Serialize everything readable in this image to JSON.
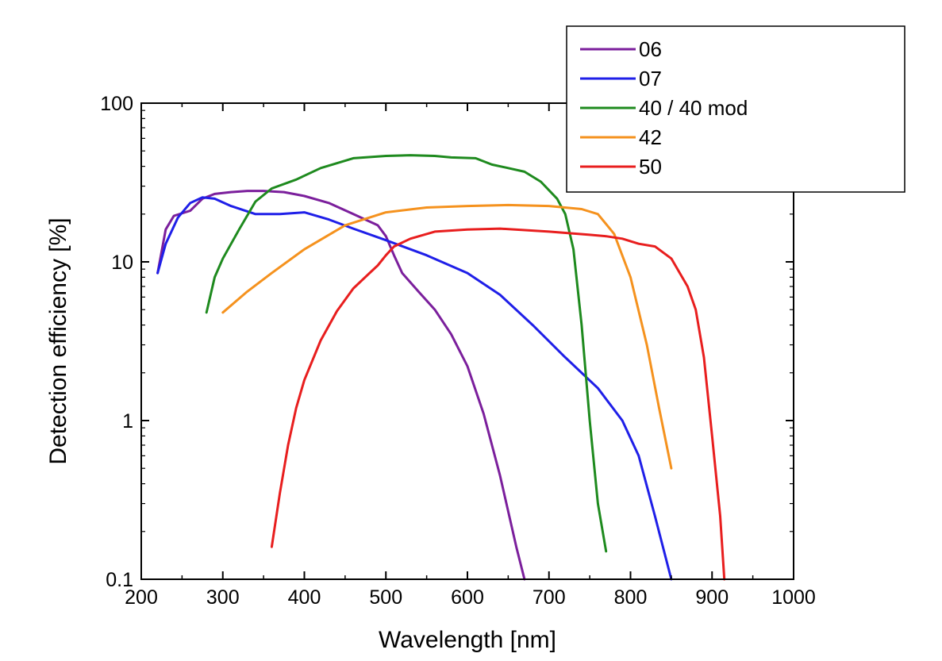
{
  "chart_data": {
    "type": "line",
    "title": "",
    "xlabel": "Wavelength [nm]",
    "ylabel": "Detection efficiency [%]",
    "xlim": [
      200,
      1000
    ],
    "ylim": [
      0.1,
      100
    ],
    "yscale": "log",
    "xticks": [
      200,
      300,
      400,
      500,
      600,
      700,
      800,
      900,
      1000
    ],
    "yticks": [
      0.1,
      1,
      10,
      100
    ],
    "x_tick_labels": [
      "200",
      "300",
      "400",
      "500",
      "600",
      "700",
      "800",
      "900",
      "1000"
    ],
    "y_tick_labels": [
      "0.1",
      "1",
      "10",
      "100"
    ],
    "grid": false,
    "legend_position": "top-right",
    "series": [
      {
        "name": "06",
        "color": "#7b1f9c",
        "points": [
          [
            220,
            8.5
          ],
          [
            230,
            16
          ],
          [
            240,
            19.5
          ],
          [
            260,
            21
          ],
          [
            275,
            25
          ],
          [
            290,
            26.8
          ],
          [
            310,
            27.5
          ],
          [
            330,
            28
          ],
          [
            350,
            28
          ],
          [
            375,
            27.5
          ],
          [
            400,
            26
          ],
          [
            430,
            23.5
          ],
          [
            460,
            20
          ],
          [
            490,
            17
          ],
          [
            500,
            14.5
          ],
          [
            510,
            11
          ],
          [
            520,
            8.5
          ],
          [
            540,
            6.5
          ],
          [
            560,
            5
          ],
          [
            580,
            3.5
          ],
          [
            600,
            2.2
          ],
          [
            620,
            1.1
          ],
          [
            640,
            0.45
          ],
          [
            660,
            0.16
          ],
          [
            670,
            0.1
          ]
        ]
      },
      {
        "name": "07",
        "color": "#1f1fe8",
        "points": [
          [
            220,
            8.5
          ],
          [
            230,
            13
          ],
          [
            245,
            19
          ],
          [
            260,
            23.5
          ],
          [
            275,
            25.5
          ],
          [
            290,
            25
          ],
          [
            310,
            22.5
          ],
          [
            340,
            20
          ],
          [
            370,
            20
          ],
          [
            400,
            20.5
          ],
          [
            430,
            18.5
          ],
          [
            460,
            16.2
          ],
          [
            500,
            13.7
          ],
          [
            550,
            11
          ],
          [
            600,
            8.5
          ],
          [
            640,
            6.2
          ],
          [
            680,
            4
          ],
          [
            720,
            2.5
          ],
          [
            760,
            1.6
          ],
          [
            790,
            1.0
          ],
          [
            810,
            0.6
          ],
          [
            830,
            0.25
          ],
          [
            850,
            0.1
          ]
        ]
      },
      {
        "name": "40 / 40 mod",
        "color": "#1e8a1e",
        "points": [
          [
            280,
            4.8
          ],
          [
            290,
            8
          ],
          [
            300,
            10.5
          ],
          [
            320,
            16
          ],
          [
            340,
            24
          ],
          [
            360,
            29
          ],
          [
            390,
            33
          ],
          [
            420,
            39
          ],
          [
            460,
            45
          ],
          [
            500,
            46.5
          ],
          [
            530,
            47
          ],
          [
            560,
            46.5
          ],
          [
            580,
            45.5
          ],
          [
            610,
            45
          ],
          [
            630,
            41
          ],
          [
            650,
            39
          ],
          [
            670,
            37
          ],
          [
            690,
            32
          ],
          [
            710,
            25
          ],
          [
            720,
            20
          ],
          [
            730,
            12
          ],
          [
            740,
            4
          ],
          [
            750,
            1
          ],
          [
            760,
            0.3
          ],
          [
            770,
            0.15
          ]
        ]
      },
      {
        "name": "42",
        "color": "#f5921e",
        "points": [
          [
            300,
            4.8
          ],
          [
            330,
            6.5
          ],
          [
            360,
            8.5
          ],
          [
            400,
            12
          ],
          [
            450,
            17
          ],
          [
            500,
            20.5
          ],
          [
            550,
            22
          ],
          [
            600,
            22.5
          ],
          [
            650,
            22.8
          ],
          [
            700,
            22.5
          ],
          [
            740,
            21.5
          ],
          [
            760,
            20
          ],
          [
            780,
            15
          ],
          [
            800,
            8
          ],
          [
            820,
            3
          ],
          [
            835,
            1.2
          ],
          [
            850,
            0.5
          ]
        ]
      },
      {
        "name": "50",
        "color": "#e81e1e",
        "points": [
          [
            360,
            0.16
          ],
          [
            370,
            0.35
          ],
          [
            380,
            0.7
          ],
          [
            390,
            1.2
          ],
          [
            400,
            1.8
          ],
          [
            420,
            3.2
          ],
          [
            440,
            4.9
          ],
          [
            460,
            6.8
          ],
          [
            480,
            8.5
          ],
          [
            490,
            9.5
          ],
          [
            500,
            11
          ],
          [
            510,
            12.5
          ],
          [
            530,
            14
          ],
          [
            560,
            15.5
          ],
          [
            600,
            16
          ],
          [
            640,
            16.2
          ],
          [
            700,
            15.5
          ],
          [
            750,
            14.8
          ],
          [
            770,
            14.5
          ],
          [
            790,
            14
          ],
          [
            810,
            13
          ],
          [
            830,
            12.5
          ],
          [
            850,
            10.5
          ],
          [
            870,
            7
          ],
          [
            880,
            5
          ],
          [
            890,
            2.5
          ],
          [
            900,
            0.8
          ],
          [
            910,
            0.25
          ],
          [
            915,
            0.1
          ]
        ]
      }
    ]
  }
}
